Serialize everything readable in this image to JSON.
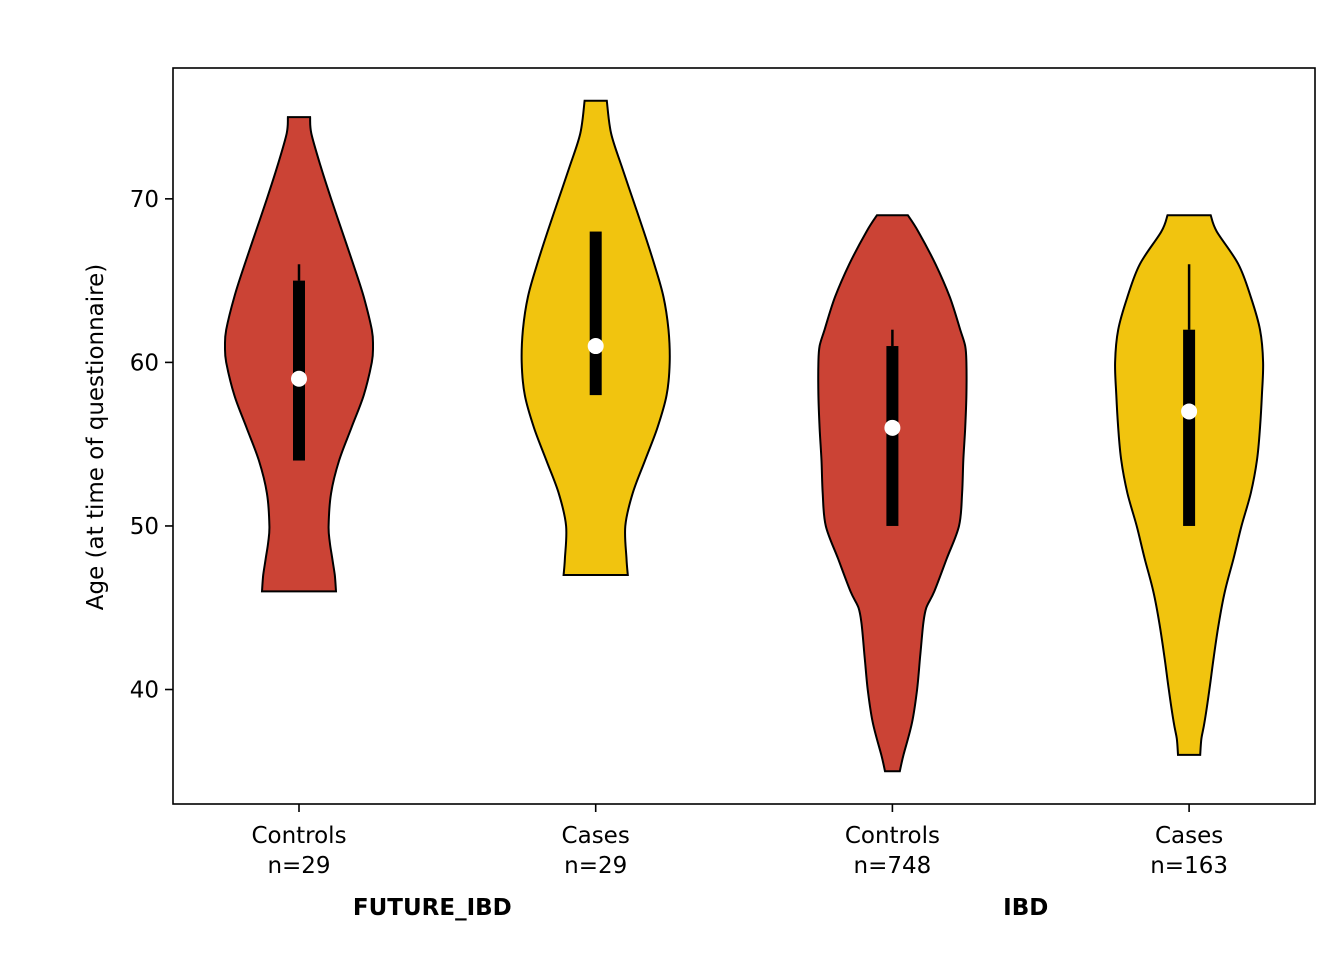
{
  "chart_data": {
    "type": "violin",
    "title": "",
    "xlabel": "",
    "ylabel": "Age (at time of questionnaire)",
    "ylim": [
      33,
      78
    ],
    "yticks": [
      40,
      50,
      60,
      70
    ],
    "grid": false,
    "groups": [
      {
        "label": "FUTURE_IBD",
        "categories": [
          0,
          1
        ]
      },
      {
        "label": "IBD",
        "categories": [
          2,
          3
        ]
      }
    ],
    "categories": [
      {
        "name": "Controls",
        "n_label": "n=29",
        "color": "#CB4335",
        "min": 46,
        "max": 75,
        "q1": 54,
        "q3": 65,
        "median": 59,
        "whisker_high": 66,
        "profile": [
          [
            46,
            0.06
          ],
          [
            47,
            0.058
          ],
          [
            48,
            0.054
          ],
          [
            49,
            0.05
          ],
          [
            50,
            0.048
          ],
          [
            52,
            0.052
          ],
          [
            54,
            0.065
          ],
          [
            56,
            0.085
          ],
          [
            58,
            0.105
          ],
          [
            60,
            0.118
          ],
          [
            61,
            0.12
          ],
          [
            62,
            0.118
          ],
          [
            64,
            0.105
          ],
          [
            66,
            0.088
          ],
          [
            68,
            0.07
          ],
          [
            70,
            0.052
          ],
          [
            72,
            0.035
          ],
          [
            74,
            0.02
          ],
          [
            75,
            0.018
          ]
        ]
      },
      {
        "name": "Cases",
        "n_label": "n=29",
        "color": "#F1C40F",
        "min": 47,
        "max": 76,
        "q1": 58,
        "q3": 68,
        "median": 61,
        "whisker_high": 68,
        "profile": [
          [
            47,
            0.052
          ],
          [
            48,
            0.05
          ],
          [
            50,
            0.048
          ],
          [
            52,
            0.06
          ],
          [
            54,
            0.08
          ],
          [
            56,
            0.1
          ],
          [
            58,
            0.115
          ],
          [
            60,
            0.12
          ],
          [
            62,
            0.118
          ],
          [
            64,
            0.11
          ],
          [
            66,
            0.095
          ],
          [
            68,
            0.078
          ],
          [
            70,
            0.06
          ],
          [
            72,
            0.042
          ],
          [
            74,
            0.025
          ],
          [
            76,
            0.018
          ]
        ]
      },
      {
        "name": "Controls",
        "n_label": "n=748",
        "color": "#CB4335",
        "min": 35,
        "max": 69,
        "q1": 50,
        "q3": 61,
        "median": 56,
        "whisker_high": 62,
        "profile": [
          [
            35,
            0.012
          ],
          [
            36,
            0.018
          ],
          [
            38,
            0.032
          ],
          [
            40,
            0.04
          ],
          [
            42,
            0.045
          ],
          [
            44,
            0.05
          ],
          [
            45,
            0.055
          ],
          [
            46,
            0.068
          ],
          [
            48,
            0.088
          ],
          [
            50,
            0.108
          ],
          [
            52,
            0.113
          ],
          [
            54,
            0.115
          ],
          [
            56,
            0.118
          ],
          [
            58,
            0.12
          ],
          [
            60,
            0.12
          ],
          [
            61,
            0.118
          ],
          [
            62,
            0.11
          ],
          [
            64,
            0.093
          ],
          [
            66,
            0.07
          ],
          [
            68,
            0.042
          ],
          [
            69,
            0.025
          ]
        ]
      },
      {
        "name": "Cases",
        "n_label": "n=163",
        "color": "#F1C40F",
        "min": 36,
        "max": 69,
        "q1": 50,
        "q3": 62,
        "median": 57,
        "whisker_high": 66,
        "profile": [
          [
            36,
            0.018
          ],
          [
            37,
            0.02
          ],
          [
            38,
            0.025
          ],
          [
            40,
            0.033
          ],
          [
            42,
            0.04
          ],
          [
            44,
            0.048
          ],
          [
            46,
            0.058
          ],
          [
            48,
            0.072
          ],
          [
            50,
            0.085
          ],
          [
            52,
            0.1
          ],
          [
            54,
            0.11
          ],
          [
            56,
            0.115
          ],
          [
            58,
            0.118
          ],
          [
            60,
            0.12
          ],
          [
            62,
            0.115
          ],
          [
            64,
            0.1
          ],
          [
            66,
            0.08
          ],
          [
            68,
            0.045
          ],
          [
            69,
            0.035
          ]
        ]
      }
    ],
    "colors": {
      "edge": "#000000",
      "median_dot": "#ffffff",
      "box": "#000000"
    }
  }
}
